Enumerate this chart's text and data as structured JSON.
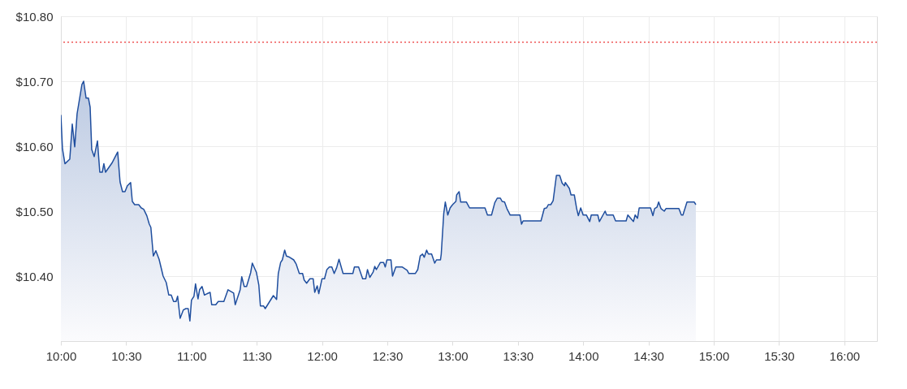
{
  "chart_data": {
    "type": "area",
    "x": [
      10.0,
      10.012,
      10.031,
      10.068,
      10.087,
      10.106,
      10.124,
      10.161,
      10.174,
      10.193,
      10.211,
      10.224,
      10.236,
      10.255,
      10.28,
      10.298,
      10.317,
      10.329,
      10.342,
      10.391,
      10.422,
      10.435,
      10.453,
      10.472,
      10.491,
      10.509,
      10.534,
      10.547,
      10.565,
      10.596,
      10.615,
      10.634,
      10.658,
      10.677,
      10.689,
      10.708,
      10.727,
      10.752,
      10.77,
      10.783,
      10.807,
      10.826,
      10.845,
      10.863,
      10.882,
      10.894,
      10.913,
      10.938,
      10.957,
      10.975,
      10.988,
      11.0,
      11.019,
      11.031,
      11.05,
      11.062,
      11.081,
      11.099,
      11.143,
      11.155,
      11.186,
      11.205,
      11.248,
      11.28,
      11.323,
      11.335,
      11.373,
      11.385,
      11.404,
      11.422,
      11.453,
      11.466,
      11.497,
      11.516,
      11.528,
      11.553,
      11.565,
      11.627,
      11.652,
      11.665,
      11.683,
      11.696,
      11.714,
      11.727,
      11.752,
      11.783,
      11.801,
      11.826,
      11.851,
      11.863,
      11.882,
      11.907,
      11.932,
      11.944,
      11.963,
      11.975,
      12.0,
      12.019,
      12.037,
      12.056,
      12.075,
      12.093,
      12.112,
      12.13,
      12.161,
      12.236,
      12.248,
      12.28,
      12.311,
      12.335,
      12.348,
      12.366,
      12.391,
      12.404,
      12.416,
      12.447,
      12.472,
      12.484,
      12.497,
      12.528,
      12.54,
      12.565,
      12.615,
      12.652,
      12.665,
      12.714,
      12.733,
      12.752,
      12.77,
      12.783,
      12.801,
      12.814,
      12.839,
      12.863,
      12.876,
      12.907,
      12.913,
      12.932,
      12.944,
      12.963,
      12.981,
      13.0,
      13.025,
      13.031,
      13.05,
      13.062,
      13.106,
      13.13,
      13.248,
      13.267,
      13.298,
      13.323,
      13.342,
      13.366,
      13.379,
      13.398,
      13.416,
      13.441,
      13.516,
      13.528,
      13.54,
      13.677,
      13.702,
      13.72,
      13.733,
      13.752,
      13.77,
      13.795,
      13.82,
      13.839,
      13.857,
      13.863,
      13.894,
      13.907,
      13.932,
      13.95,
      13.963,
      13.981,
      14.0,
      14.025,
      14.05,
      14.062,
      14.112,
      14.124,
      14.168,
      14.18,
      14.23,
      14.248,
      14.329,
      14.342,
      14.385,
      14.398,
      14.416,
      14.429,
      14.516,
      14.534,
      14.547,
      14.565,
      14.578,
      14.596,
      14.621,
      14.634,
      14.733,
      14.752,
      14.764,
      14.795,
      14.851,
      14.863
    ],
    "series": [
      {
        "color": "#1f4e9e",
        "values": [
          10.648,
          10.596,
          10.573,
          10.58,
          10.634,
          10.599,
          10.65,
          10.695,
          10.7,
          10.674,
          10.674,
          10.66,
          10.595,
          10.584,
          10.608,
          10.56,
          10.56,
          10.573,
          10.56,
          10.574,
          10.586,
          10.591,
          10.545,
          10.53,
          10.53,
          10.539,
          10.544,
          10.515,
          10.51,
          10.51,
          10.505,
          10.503,
          10.493,
          10.48,
          10.475,
          10.431,
          10.439,
          10.426,
          10.411,
          10.4,
          10.39,
          10.371,
          10.371,
          10.361,
          10.361,
          10.369,
          10.335,
          10.348,
          10.35,
          10.35,
          10.331,
          10.363,
          10.369,
          10.388,
          10.365,
          10.379,
          10.384,
          10.371,
          10.375,
          10.356,
          10.356,
          10.361,
          10.361,
          10.379,
          10.374,
          10.356,
          10.379,
          10.399,
          10.384,
          10.384,
          10.405,
          10.42,
          10.406,
          10.386,
          10.354,
          10.354,
          10.35,
          10.37,
          10.364,
          10.404,
          10.421,
          10.425,
          10.44,
          10.431,
          10.429,
          10.425,
          10.419,
          10.404,
          10.404,
          10.394,
          10.389,
          10.396,
          10.396,
          10.375,
          10.385,
          10.373,
          10.396,
          10.396,
          10.41,
          10.414,
          10.414,
          10.404,
          10.413,
          10.426,
          10.404,
          10.404,
          10.414,
          10.414,
          10.396,
          10.396,
          10.41,
          10.398,
          10.406,
          10.415,
          10.41,
          10.421,
          10.421,
          10.414,
          10.425,
          10.425,
          10.4,
          10.414,
          10.414,
          10.409,
          10.404,
          10.404,
          10.41,
          10.431,
          10.434,
          10.429,
          10.44,
          10.434,
          10.434,
          10.42,
          10.425,
          10.425,
          10.434,
          10.496,
          10.514,
          10.494,
          10.505,
          10.51,
          10.515,
          10.525,
          10.53,
          10.514,
          10.514,
          10.505,
          10.505,
          10.494,
          10.494,
          10.513,
          10.52,
          10.52,
          10.515,
          10.514,
          10.504,
          10.494,
          10.494,
          10.48,
          10.485,
          10.485,
          10.504,
          10.505,
          10.51,
          10.51,
          10.516,
          10.555,
          10.555,
          10.543,
          10.539,
          10.544,
          10.535,
          10.525,
          10.525,
          10.504,
          10.493,
          10.505,
          10.494,
          10.494,
          10.484,
          10.494,
          10.494,
          10.484,
          10.5,
          10.494,
          10.494,
          10.485,
          10.485,
          10.494,
          10.484,
          10.494,
          10.489,
          10.505,
          10.505,
          10.493,
          10.504,
          10.506,
          10.514,
          10.504,
          10.5,
          10.504,
          10.504,
          10.494,
          10.494,
          10.514,
          10.514,
          10.51
        ]
      }
    ],
    "xlim": [
      10,
      16.25
    ],
    "xticks": [
      {
        "value": 10,
        "label": "10:00"
      },
      {
        "value": 10.5,
        "label": "10:30"
      },
      {
        "value": 11,
        "label": "11:00"
      },
      {
        "value": 11.5,
        "label": "11:30"
      },
      {
        "value": 12,
        "label": "12:00"
      },
      {
        "value": 12.5,
        "label": "12:30"
      },
      {
        "value": 13,
        "label": "13:00"
      },
      {
        "value": 13.5,
        "label": "13:30"
      },
      {
        "value": 14,
        "label": "14:00"
      },
      {
        "value": 14.5,
        "label": "14:30"
      },
      {
        "value": 15,
        "label": "15:00"
      },
      {
        "value": 15.5,
        "label": "15:30"
      },
      {
        "value": 16,
        "label": "16:00"
      }
    ],
    "ylim": [
      10.3,
      10.8
    ],
    "yticks": [
      {
        "value": 10.4,
        "label": "$10.40"
      },
      {
        "value": 10.5,
        "label": "$10.50"
      },
      {
        "value": 10.6,
        "label": "$10.60"
      },
      {
        "value": 10.7,
        "label": "$10.70"
      },
      {
        "value": 10.8,
        "label": "$10.80"
      }
    ],
    "grid": true,
    "ref_lines": [
      {
        "axis": "y",
        "value": 10.76,
        "color": "#f05a5a",
        "line_style": "dotted"
      }
    ]
  }
}
